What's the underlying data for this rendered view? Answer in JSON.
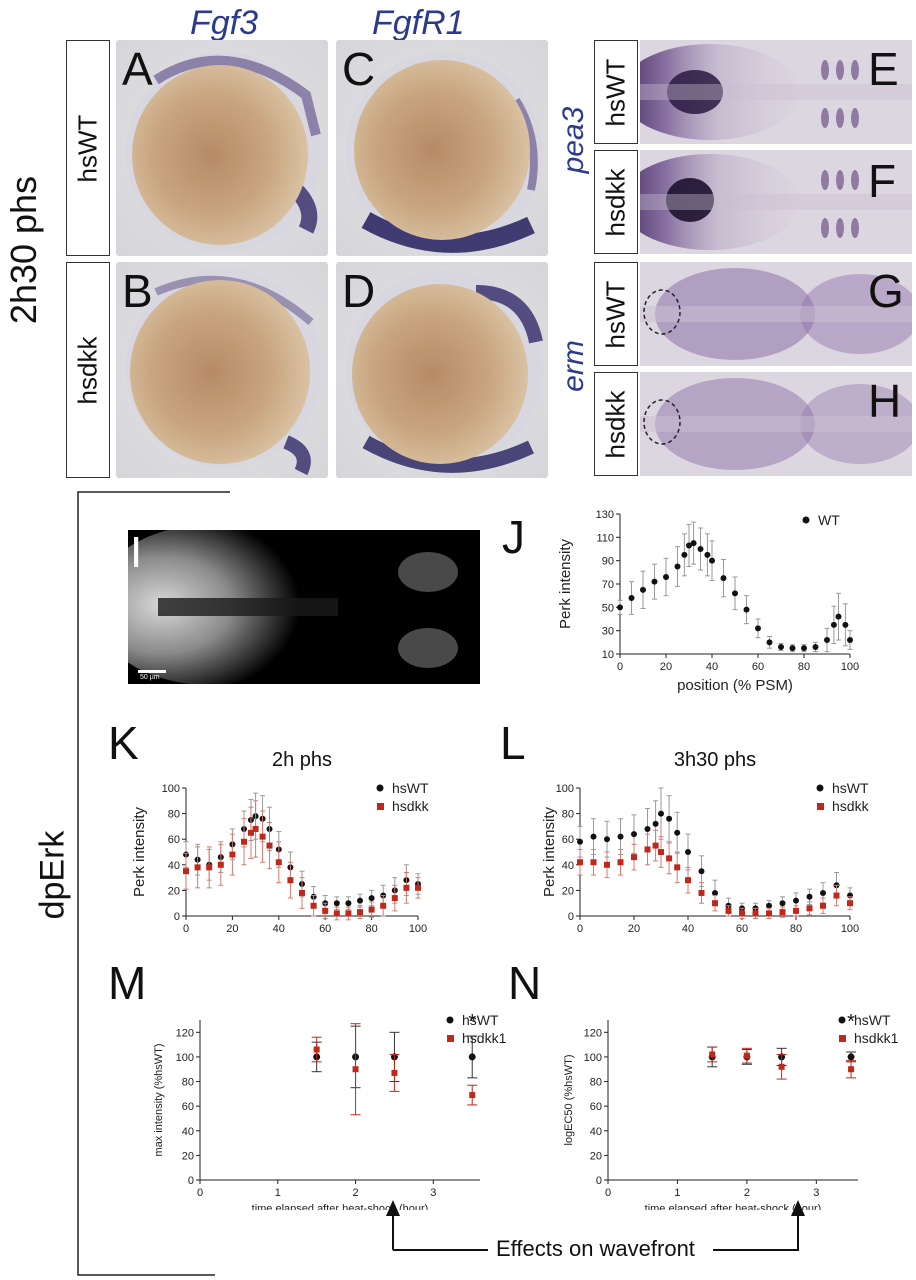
{
  "figure": {
    "row_label": "2h30 phs",
    "side_label": "dpErk",
    "wavefront_label": "Effects on wavefront",
    "columns": {
      "fgf3": "Fgf3",
      "fgfr1": "FgfR1"
    },
    "genes_right": {
      "pea3": "pea3",
      "erm": "erm"
    },
    "genotype": {
      "wt": "hsWT",
      "dkk": "hsdkk"
    },
    "letters": {
      "A": "A",
      "B": "B",
      "C": "C",
      "D": "D",
      "E": "E",
      "F": "F",
      "G": "G",
      "H": "H",
      "I": "I",
      "J": "J",
      "K": "K",
      "L": "L",
      "M": "M",
      "N": "N"
    },
    "scale_bar": "50 µm",
    "colors": {
      "wt": "#111111",
      "dkk": "#c0281c",
      "gene": "#2c3a8c",
      "stain": "#5a3f7a"
    }
  },
  "chart_data": [
    {
      "id": "J",
      "type": "scatter",
      "title": "",
      "xlabel": "position (% PSM)",
      "ylabel": "Perk intensity",
      "xlim": [
        0,
        100
      ],
      "ylim": [
        10,
        130
      ],
      "xticks": [
        0,
        20,
        40,
        60,
        80,
        100
      ],
      "yticks": [
        10,
        30,
        50,
        70,
        90,
        110,
        130
      ],
      "legend": "top-right",
      "series": [
        {
          "name": "WT",
          "x": [
            0,
            5,
            10,
            15,
            20,
            25,
            28,
            30,
            32,
            35,
            38,
            40,
            45,
            50,
            55,
            60,
            65,
            70,
            75,
            80,
            85,
            90,
            93,
            95,
            98,
            100
          ],
          "y": [
            50,
            58,
            65,
            72,
            76,
            85,
            95,
            103,
            105,
            100,
            95,
            90,
            75,
            62,
            48,
            32,
            20,
            16,
            15,
            15,
            16,
            22,
            35,
            42,
            35,
            22
          ],
          "err": [
            6,
            14,
            16,
            15,
            16,
            17,
            18,
            18,
            18,
            18,
            18,
            17,
            16,
            14,
            12,
            8,
            5,
            3,
            3,
            3,
            4,
            10,
            16,
            20,
            18,
            8
          ]
        }
      ]
    },
    {
      "id": "K",
      "type": "scatter",
      "title": "2h phs",
      "xlabel": "position (% PSM)",
      "ylabel": "Perk intensity",
      "xlim": [
        0,
        100
      ],
      "ylim": [
        0,
        100
      ],
      "xticks": [
        0,
        20,
        40,
        60,
        80,
        100
      ],
      "yticks": [
        0,
        20,
        40,
        60,
        80,
        100
      ],
      "legend": "top-right",
      "series": [
        {
          "name": "hsWT",
          "x": [
            0,
            5,
            10,
            15,
            20,
            25,
            28,
            30,
            33,
            36,
            40,
            45,
            50,
            55,
            60,
            65,
            70,
            75,
            80,
            85,
            90,
            95,
            100
          ],
          "y": [
            48,
            44,
            40,
            46,
            56,
            68,
            75,
            78,
            76,
            68,
            52,
            38,
            25,
            15,
            10,
            10,
            10,
            12,
            14,
            16,
            20,
            28,
            25
          ],
          "err": [
            10,
            12,
            12,
            12,
            12,
            14,
            16,
            18,
            18,
            17,
            14,
            12,
            10,
            8,
            6,
            5,
            5,
            5,
            6,
            8,
            10,
            12,
            8
          ]
        },
        {
          "name": "hsdkk",
          "x": [
            0,
            5,
            10,
            15,
            20,
            25,
            28,
            30,
            33,
            36,
            40,
            45,
            50,
            55,
            60,
            65,
            70,
            75,
            80,
            85,
            90,
            95,
            100
          ],
          "y": [
            35,
            38,
            38,
            40,
            48,
            58,
            65,
            68,
            62,
            55,
            42,
            28,
            18,
            8,
            4,
            2,
            2,
            3,
            5,
            8,
            14,
            22,
            22
          ],
          "err": [
            14,
            16,
            16,
            16,
            16,
            18,
            20,
            22,
            20,
            18,
            16,
            14,
            12,
            8,
            6,
            5,
            5,
            5,
            6,
            8,
            10,
            12,
            8
          ]
        }
      ]
    },
    {
      "id": "L",
      "type": "scatter",
      "title": "3h30 phs",
      "xlabel": "position (% PSM)",
      "ylabel": "Perk intensity",
      "xlim": [
        0,
        100
      ],
      "ylim": [
        0,
        100
      ],
      "xticks": [
        0,
        20,
        40,
        60,
        80,
        100
      ],
      "yticks": [
        0,
        20,
        40,
        60,
        80,
        100
      ],
      "legend": "top-right",
      "series": [
        {
          "name": "hsWT",
          "x": [
            0,
            5,
            10,
            15,
            20,
            25,
            28,
            30,
            33,
            36,
            40,
            45,
            50,
            55,
            60,
            65,
            70,
            75,
            80,
            85,
            90,
            95,
            100
          ],
          "y": [
            58,
            62,
            60,
            62,
            64,
            68,
            72,
            80,
            76,
            65,
            50,
            35,
            18,
            8,
            6,
            6,
            8,
            10,
            12,
            15,
            18,
            24,
            16
          ],
          "err": [
            12,
            14,
            14,
            14,
            15,
            16,
            18,
            20,
            18,
            16,
            14,
            12,
            10,
            6,
            4,
            4,
            4,
            5,
            6,
            6,
            8,
            10,
            6
          ]
        },
        {
          "name": "hsdkk",
          "x": [
            0,
            5,
            10,
            15,
            20,
            25,
            28,
            30,
            33,
            36,
            40,
            45,
            50,
            55,
            60,
            65,
            70,
            75,
            80,
            85,
            90,
            95,
            100
          ],
          "y": [
            42,
            42,
            40,
            42,
            46,
            52,
            55,
            50,
            45,
            38,
            28,
            18,
            10,
            4,
            2,
            2,
            2,
            3,
            4,
            6,
            8,
            16,
            10
          ],
          "err": [
            10,
            10,
            10,
            10,
            10,
            12,
            12,
            12,
            12,
            12,
            10,
            8,
            6,
            4,
            4,
            4,
            4,
            4,
            4,
            5,
            6,
            8,
            5
          ]
        }
      ]
    },
    {
      "id": "M",
      "type": "scatter",
      "title": "",
      "xlabel": "time elapsed after heat-shock (hour)",
      "ylabel": "max intensity (%hsWT)",
      "xlim": [
        0,
        3.6
      ],
      "ylim": [
        0,
        130
      ],
      "xticks": [
        0,
        1,
        2,
        3
      ],
      "yticks": [
        0,
        20,
        40,
        60,
        80,
        100,
        120
      ],
      "legend": "top-right",
      "annotation": "*",
      "series": [
        {
          "name": "hsWT",
          "x": [
            1.5,
            2.0,
            2.5,
            3.5
          ],
          "y": [
            100,
            100,
            100,
            100
          ],
          "err": [
            12,
            25,
            20,
            17
          ]
        },
        {
          "name": "hsdkk1",
          "x": [
            1.5,
            2.0,
            2.5,
            3.5
          ],
          "y": [
            106,
            90,
            87,
            69
          ],
          "err": [
            10,
            37,
            15,
            8
          ]
        }
      ]
    },
    {
      "id": "N",
      "type": "scatter",
      "title": "",
      "xlabel": "time elapsed after heat-shock (hour)",
      "ylabel": "logEC50 (%hsWT)",
      "xlim": [
        0,
        3.6
      ],
      "ylim": [
        0,
        130
      ],
      "xticks": [
        0,
        1,
        2,
        3
      ],
      "yticks": [
        0,
        20,
        40,
        60,
        80,
        100,
        120
      ],
      "legend": "top-right",
      "annotation": "*",
      "series": [
        {
          "name": "hsWT",
          "x": [
            1.5,
            2.0,
            2.5,
            3.5
          ],
          "y": [
            100,
            100,
            100,
            100
          ],
          "err": [
            8,
            6,
            7,
            4
          ]
        },
        {
          "name": "hsdkk1",
          "x": [
            1.5,
            2.0,
            2.5,
            3.5
          ],
          "y": [
            102,
            101,
            92,
            90
          ],
          "err": [
            6,
            6,
            10,
            7
          ]
        }
      ]
    }
  ]
}
